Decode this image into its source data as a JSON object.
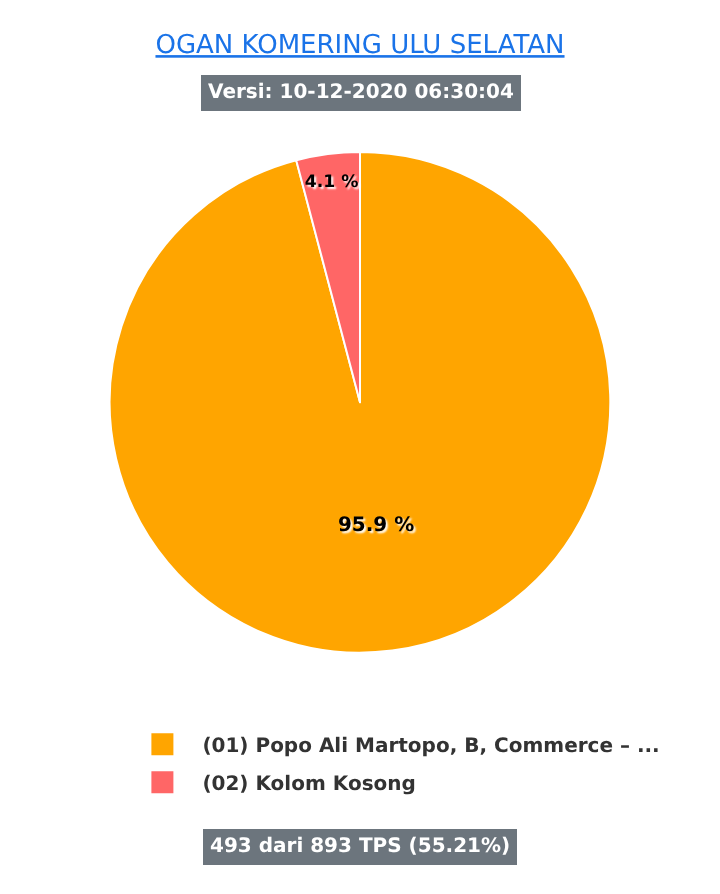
{
  "chart_data": {
    "type": "pie",
    "title": "OGAN KOMERING ULU SELATAN",
    "subtitle": "Versi: 10-12-2020 06:30:04",
    "categories": [
      "(01) Popo Ali Martopo, B, Commerce – ...",
      "(02) Kolom Kosong"
    ],
    "values": [
      95.9,
      4.1
    ],
    "colors": [
      "#ffa500",
      "#ff6666"
    ],
    "value_labels": [
      "95.9 %",
      "4.1 %"
    ],
    "legend": "bottom",
    "annotations": [
      "493 dari 893 TPS (55.21%)"
    ]
  }
}
